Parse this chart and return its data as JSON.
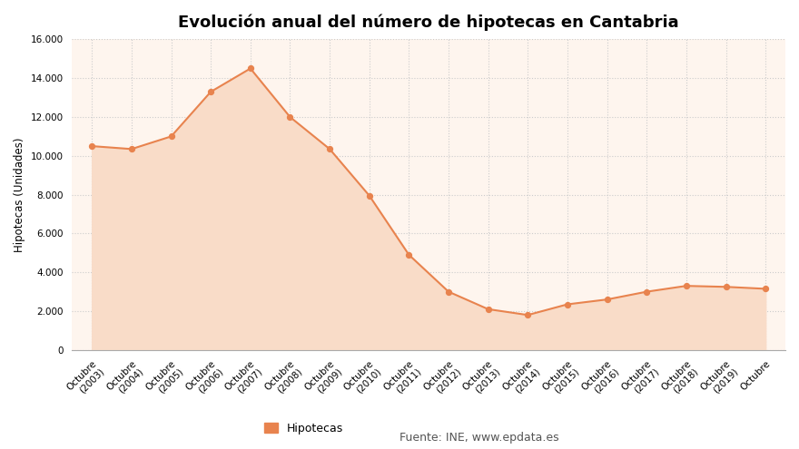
{
  "title": "Evolución anual del número de hipotecas en Cantabria",
  "ylabel": "Hipotecas (Unidades)",
  "labels": [
    "Octubre\n(2003)",
    "Octubre\n(2004)",
    "Octubre\n(2005)",
    "Octubre\n(2006)",
    "Octubre\n(2007)",
    "Octubre\n(2008)",
    "Octubre\n(2009)",
    "Octubre\n(2010)",
    "Octubre\n(2011)",
    "Octubre\n(2012)",
    "Octubre\n(2013)",
    "Octubre\n(2014)",
    "Octubre\n(2015)",
    "Octubre\n(2016)",
    "Octubre\n(2017)",
    "Octubre\n(2018)",
    "Octubre\n(2019)",
    "Octubre"
  ],
  "values": [
    10500,
    10350,
    11000,
    13300,
    14500,
    12000,
    10350,
    7950,
    4900,
    3000,
    2100,
    1800,
    2350,
    2600,
    3000,
    3300,
    3250,
    3150
  ],
  "line_color": "#E8834E",
  "fill_color": "#F9DCC8",
  "marker_color": "#E8834E",
  "background_color": "#FFFFFF",
  "plot_bg_color": "#FEF5EE",
  "grid_color": "#CCCCCC",
  "ylim": [
    0,
    16000
  ],
  "yticks": [
    0,
    2000,
    4000,
    6000,
    8000,
    10000,
    12000,
    14000,
    16000
  ],
  "legend_label": "Hipotecas",
  "source_text": "Fuente: INE, www.epdata.es",
  "title_fontsize": 13,
  "label_fontsize": 7.5,
  "ylabel_fontsize": 8.5
}
